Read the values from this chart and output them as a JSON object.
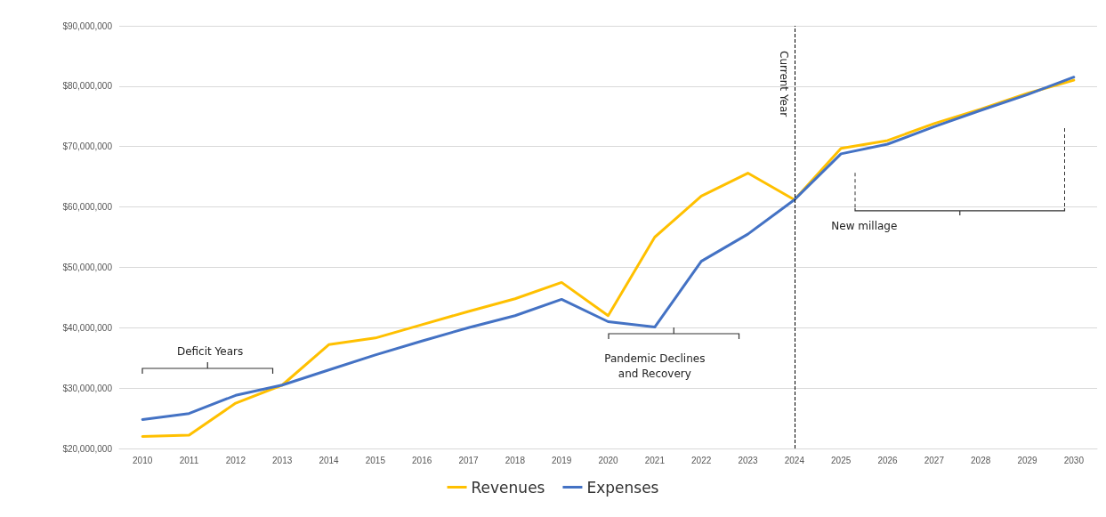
{
  "chart_data": {
    "type": "line",
    "categories": [
      "2010",
      "2011",
      "2012",
      "2013",
      "2014",
      "2015",
      "2016",
      "2017",
      "2018",
      "2019",
      "2020",
      "2021",
      "2022",
      "2023",
      "2024",
      "2025",
      "2026",
      "2027",
      "2028",
      "2029",
      "2030"
    ],
    "series": [
      {
        "name": "Revenues",
        "color": "#ffc000",
        "values": [
          22000000,
          22200000,
          27500000,
          30500000,
          37200000,
          38300000,
          40500000,
          42700000,
          44800000,
          47500000,
          42000000,
          55000000,
          61800000,
          65600000,
          61200000,
          69700000,
          71000000,
          73800000,
          76200000,
          78800000,
          81000000
        ]
      },
      {
        "name": "Expenses",
        "color": "#4472c4",
        "values": [
          24800000,
          25800000,
          28800000,
          30500000,
          33000000,
          35500000,
          37800000,
          40000000,
          42000000,
          44700000,
          41000000,
          40100000,
          51000000,
          55500000,
          61200000,
          68800000,
          70400000,
          73300000,
          76000000,
          78600000,
          81500000
        ]
      }
    ],
    "ylim": [
      20000000,
      90000000
    ],
    "yticks": [
      {
        "value": 20000000,
        "label": "$20,000,000"
      },
      {
        "value": 30000000,
        "label": "$30,000,000"
      },
      {
        "value": 40000000,
        "label": "$40,000,000"
      },
      {
        "value": 50000000,
        "label": "$50,000,000"
      },
      {
        "value": 60000000,
        "label": "$60,000,000"
      },
      {
        "value": 70000000,
        "label": "$70,000,000"
      },
      {
        "value": 80000000,
        "label": "$80,000,000"
      },
      {
        "value": 90000000,
        "label": "$90,000,000"
      }
    ],
    "grid": "y",
    "legend": "bottom",
    "marker": "none",
    "line_style": "solid",
    "ref_lines": [
      {
        "axis": "x",
        "value": "2024",
        "label": "Current Year",
        "color": "#000000",
        "line_style": "dashed"
      }
    ],
    "annotations": [
      "Deficit Years",
      "Pandemic Declines\nand Recovery",
      "New millage"
    ]
  }
}
